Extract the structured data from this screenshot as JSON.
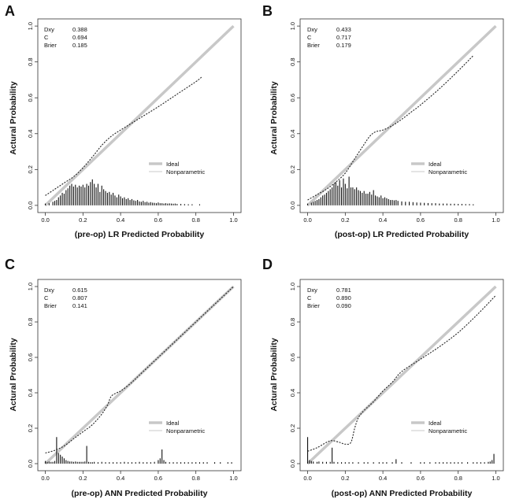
{
  "figure": {
    "legend": {
      "ideal_label": "Ideal",
      "nonparametric_label": "Nonparametric"
    },
    "colors": {
      "ideal": "#c8c8c8",
      "curve": "#222222",
      "spike": "#111111",
      "axis": "#333333"
    }
  },
  "chart_data": [
    {
      "panel": "A",
      "type": "line",
      "xlabel": "(pre-op) LR Predicted Probability",
      "ylabel": "Actural Probability",
      "xlim": [
        0,
        1
      ],
      "ylim": [
        0,
        1
      ],
      "xticks": [
        "0.0",
        "0.2",
        "0.4",
        "0.6",
        "0.8",
        "1.0"
      ],
      "yticks": [
        "0.0",
        "0.2",
        "0.4",
        "0.6",
        "0.8",
        "1.0"
      ],
      "stats": [
        {
          "label": "Dxy",
          "value": "0.388"
        },
        {
          "label": "C",
          "value": "0.694"
        },
        {
          "label": "Brier",
          "value": "0.185"
        }
      ],
      "series": [
        {
          "name": "Ideal",
          "x": [
            0,
            1
          ],
          "y": [
            0,
            1
          ]
        },
        {
          "name": "Nonparametric",
          "x": [
            0.0,
            0.05,
            0.1,
            0.15,
            0.2,
            0.25,
            0.3,
            0.35,
            0.4,
            0.5,
            0.6,
            0.7,
            0.8,
            0.83
          ],
          "y": [
            0.055,
            0.09,
            0.125,
            0.16,
            0.21,
            0.27,
            0.335,
            0.385,
            0.42,
            0.485,
            0.55,
            0.62,
            0.69,
            0.715
          ]
        }
      ],
      "spikes": {
        "x": [
          0.0,
          0.02,
          0.04,
          0.05,
          0.06,
          0.07,
          0.08,
          0.09,
          0.1,
          0.11,
          0.12,
          0.13,
          0.14,
          0.15,
          0.16,
          0.17,
          0.18,
          0.19,
          0.2,
          0.21,
          0.22,
          0.23,
          0.24,
          0.25,
          0.26,
          0.27,
          0.28,
          0.29,
          0.3,
          0.31,
          0.32,
          0.33,
          0.34,
          0.35,
          0.36,
          0.37,
          0.38,
          0.39,
          0.4,
          0.41,
          0.42,
          0.43,
          0.44,
          0.45,
          0.46,
          0.47,
          0.48,
          0.49,
          0.5,
          0.51,
          0.52,
          0.53,
          0.54,
          0.55,
          0.56,
          0.57,
          0.58,
          0.59,
          0.6,
          0.61,
          0.62,
          0.63,
          0.64,
          0.65,
          0.66,
          0.67,
          0.68,
          0.69,
          0.7,
          0.72,
          0.74,
          0.76,
          0.78,
          0.82
        ],
        "h": [
          0.01,
          0.012,
          0.02,
          0.025,
          0.03,
          0.045,
          0.055,
          0.07,
          0.065,
          0.085,
          0.095,
          0.11,
          0.12,
          0.105,
          0.115,
          0.1,
          0.11,
          0.105,
          0.115,
          0.1,
          0.12,
          0.11,
          0.13,
          0.145,
          0.12,
          0.1,
          0.12,
          0.075,
          0.11,
          0.09,
          0.08,
          0.07,
          0.075,
          0.06,
          0.07,
          0.055,
          0.045,
          0.06,
          0.05,
          0.04,
          0.045,
          0.035,
          0.04,
          0.03,
          0.035,
          0.028,
          0.025,
          0.03,
          0.022,
          0.02,
          0.025,
          0.018,
          0.02,
          0.015,
          0.018,
          0.015,
          0.014,
          0.012,
          0.016,
          0.012,
          0.012,
          0.01,
          0.012,
          0.01,
          0.011,
          0.01,
          0.009,
          0.01,
          0.008,
          0.008,
          0.007,
          0.006,
          0.006,
          0.006
        ]
      }
    },
    {
      "panel": "B",
      "type": "line",
      "xlabel": "(post-op) LR Predicted Probability",
      "ylabel": "Actural Probability",
      "xlim": [
        0,
        1
      ],
      "ylim": [
        0,
        1
      ],
      "xticks": [
        "0.0",
        "0.2",
        "0.4",
        "0.6",
        "0.8",
        "1.0"
      ],
      "yticks": [
        "0.0",
        "0.2",
        "0.4",
        "0.6",
        "0.8",
        "1.0"
      ],
      "stats": [
        {
          "label": "Dxy",
          "value": "0.433"
        },
        {
          "label": "C",
          "value": "0.717"
        },
        {
          "label": "Brier",
          "value": "0.179"
        }
      ],
      "series": [
        {
          "name": "Ideal",
          "x": [
            0,
            1
          ],
          "y": [
            0,
            1
          ]
        },
        {
          "name": "Nonparametric",
          "x": [
            0.0,
            0.05,
            0.1,
            0.15,
            0.2,
            0.25,
            0.3,
            0.33,
            0.36,
            0.4,
            0.45,
            0.5,
            0.55,
            0.6,
            0.7,
            0.8,
            0.88
          ],
          "y": [
            0.03,
            0.06,
            0.09,
            0.13,
            0.18,
            0.26,
            0.34,
            0.385,
            0.41,
            0.42,
            0.445,
            0.48,
            0.52,
            0.56,
            0.65,
            0.75,
            0.835
          ]
        }
      ],
      "spikes": {
        "x": [
          0.0,
          0.02,
          0.03,
          0.04,
          0.05,
          0.06,
          0.07,
          0.08,
          0.09,
          0.1,
          0.11,
          0.12,
          0.13,
          0.14,
          0.15,
          0.16,
          0.17,
          0.18,
          0.19,
          0.2,
          0.21,
          0.22,
          0.23,
          0.24,
          0.25,
          0.26,
          0.27,
          0.28,
          0.29,
          0.3,
          0.31,
          0.32,
          0.33,
          0.34,
          0.35,
          0.36,
          0.37,
          0.38,
          0.39,
          0.4,
          0.41,
          0.42,
          0.43,
          0.44,
          0.45,
          0.46,
          0.47,
          0.48,
          0.5,
          0.52,
          0.54,
          0.56,
          0.58,
          0.6,
          0.62,
          0.64,
          0.66,
          0.68,
          0.7,
          0.72,
          0.74,
          0.76,
          0.78,
          0.8,
          0.82,
          0.84,
          0.86,
          0.88
        ],
        "h": [
          0.01,
          0.015,
          0.02,
          0.025,
          0.03,
          0.035,
          0.045,
          0.055,
          0.06,
          0.07,
          0.08,
          0.09,
          0.1,
          0.12,
          0.13,
          0.11,
          0.14,
          0.1,
          0.15,
          0.12,
          0.095,
          0.16,
          0.1,
          0.1,
          0.09,
          0.1,
          0.085,
          0.08,
          0.07,
          0.08,
          0.065,
          0.065,
          0.075,
          0.06,
          0.085,
          0.055,
          0.05,
          0.045,
          0.055,
          0.04,
          0.045,
          0.04,
          0.035,
          0.03,
          0.03,
          0.028,
          0.03,
          0.025,
          0.022,
          0.02,
          0.02,
          0.018,
          0.016,
          0.015,
          0.014,
          0.013,
          0.012,
          0.012,
          0.01,
          0.01,
          0.01,
          0.009,
          0.009,
          0.008,
          0.008,
          0.007,
          0.007,
          0.006
        ]
      }
    },
    {
      "panel": "C",
      "type": "line",
      "xlabel": "(pre-op) ANN Predicted Probability",
      "ylabel": "Actural Probability",
      "xlim": [
        0,
        1
      ],
      "ylim": [
        0,
        1
      ],
      "xticks": [
        "0.0",
        "0.2",
        "0.4",
        "0.6",
        "0.8",
        "1.0"
      ],
      "yticks": [
        "0.0",
        "0.2",
        "0.4",
        "0.6",
        "0.8",
        "1.0"
      ],
      "stats": [
        {
          "label": "Dxy",
          "value": "0.615"
        },
        {
          "label": "C",
          "value": "0.807"
        },
        {
          "label": "Brier",
          "value": "0.141"
        }
      ],
      "series": [
        {
          "name": "Ideal",
          "x": [
            0,
            1
          ],
          "y": [
            0,
            1
          ]
        },
        {
          "name": "Nonparametric",
          "x": [
            0.0,
            0.05,
            0.1,
            0.15,
            0.2,
            0.25,
            0.3,
            0.33,
            0.35,
            0.38,
            0.4,
            0.45,
            0.5,
            0.6,
            0.7,
            0.8,
            0.9,
            1.0
          ],
          "y": [
            0.06,
            0.075,
            0.1,
            0.14,
            0.18,
            0.22,
            0.28,
            0.33,
            0.38,
            0.4,
            0.41,
            0.45,
            0.5,
            0.6,
            0.7,
            0.8,
            0.9,
            1.0
          ]
        }
      ],
      "spikes": {
        "x": [
          0.0,
          0.01,
          0.02,
          0.03,
          0.04,
          0.05,
          0.06,
          0.07,
          0.08,
          0.09,
          0.1,
          0.11,
          0.12,
          0.13,
          0.14,
          0.15,
          0.16,
          0.17,
          0.18,
          0.19,
          0.2,
          0.21,
          0.22,
          0.23,
          0.24,
          0.25,
          0.26,
          0.28,
          0.3,
          0.32,
          0.34,
          0.36,
          0.38,
          0.4,
          0.42,
          0.44,
          0.46,
          0.48,
          0.5,
          0.52,
          0.54,
          0.56,
          0.58,
          0.6,
          0.61,
          0.62,
          0.63,
          0.64,
          0.66,
          0.68,
          0.7,
          0.72,
          0.74,
          0.76,
          0.78,
          0.8,
          0.82,
          0.84,
          0.86,
          0.9,
          0.93,
          0.97,
          0.99
        ],
        "h": [
          0.015,
          0.01,
          0.012,
          0.01,
          0.01,
          0.015,
          0.15,
          0.06,
          0.05,
          0.04,
          0.03,
          0.02,
          0.015,
          0.012,
          0.012,
          0.01,
          0.012,
          0.01,
          0.01,
          0.01,
          0.01,
          0.012,
          0.1,
          0.01,
          0.008,
          0.008,
          0.01,
          0.008,
          0.01,
          0.008,
          0.008,
          0.008,
          0.008,
          0.008,
          0.01,
          0.008,
          0.008,
          0.008,
          0.01,
          0.008,
          0.008,
          0.008,
          0.01,
          0.02,
          0.03,
          0.08,
          0.02,
          0.01,
          0.008,
          0.008,
          0.008,
          0.008,
          0.008,
          0.008,
          0.008,
          0.008,
          0.008,
          0.008,
          0.008,
          0.008,
          0.008,
          0.008,
          0.008
        ]
      }
    },
    {
      "panel": "D",
      "type": "line",
      "xlabel": "(post-op) ANN Predicted Probability",
      "ylabel": "Actural Probability",
      "xlim": [
        0,
        1
      ],
      "ylim": [
        0,
        1
      ],
      "xticks": [
        "0.0",
        "0.2",
        "0.4",
        "0.6",
        "0.8",
        "1.0"
      ],
      "yticks": [
        "0.0",
        "0.2",
        "0.4",
        "0.6",
        "0.8",
        "1.0"
      ],
      "stats": [
        {
          "label": "Dxy",
          "value": "0.781"
        },
        {
          "label": "C",
          "value": "0.890"
        },
        {
          "label": "Brier",
          "value": "0.090"
        }
      ],
      "series": [
        {
          "name": "Ideal",
          "x": [
            0,
            1
          ],
          "y": [
            0,
            1
          ]
        },
        {
          "name": "Nonparametric",
          "x": [
            0.0,
            0.05,
            0.1,
            0.13,
            0.17,
            0.2,
            0.23,
            0.25,
            0.27,
            0.3,
            0.35,
            0.4,
            0.45,
            0.5,
            0.6,
            0.7,
            0.8,
            0.9,
            1.0
          ],
          "y": [
            0.07,
            0.09,
            0.12,
            0.13,
            0.12,
            0.11,
            0.12,
            0.2,
            0.26,
            0.3,
            0.35,
            0.41,
            0.46,
            0.52,
            0.59,
            0.66,
            0.74,
            0.84,
            0.95
          ]
        }
      ],
      "spikes": {
        "x": [
          0.0,
          0.01,
          0.02,
          0.03,
          0.05,
          0.06,
          0.08,
          0.1,
          0.12,
          0.13,
          0.14,
          0.16,
          0.18,
          0.2,
          0.22,
          0.24,
          0.27,
          0.3,
          0.32,
          0.35,
          0.38,
          0.4,
          0.42,
          0.45,
          0.47,
          0.5,
          0.55,
          0.6,
          0.62,
          0.65,
          0.68,
          0.7,
          0.72,
          0.74,
          0.76,
          0.78,
          0.8,
          0.82,
          0.85,
          0.88,
          0.9,
          0.92,
          0.94,
          0.96,
          0.97,
          0.98,
          0.99
        ],
        "h": [
          0.15,
          0.02,
          0.015,
          0.012,
          0.01,
          0.012,
          0.01,
          0.01,
          0.01,
          0.09,
          0.01,
          0.008,
          0.008,
          0.008,
          0.008,
          0.008,
          0.008,
          0.008,
          0.008,
          0.008,
          0.008,
          0.008,
          0.008,
          0.008,
          0.025,
          0.008,
          0.008,
          0.008,
          0.008,
          0.008,
          0.008,
          0.008,
          0.008,
          0.008,
          0.008,
          0.008,
          0.008,
          0.008,
          0.008,
          0.008,
          0.008,
          0.008,
          0.008,
          0.01,
          0.012,
          0.02,
          0.055
        ]
      }
    }
  ]
}
